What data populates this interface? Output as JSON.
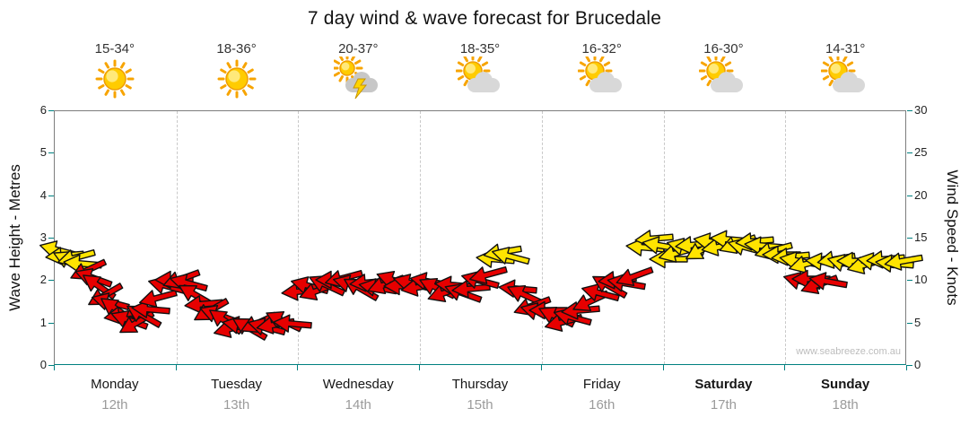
{
  "title": "7 day wind & wave forecast for Brucedale",
  "watermark": "www.seabreeze.com.au",
  "days": [
    {
      "name": "Monday",
      "date": "12th",
      "temp": "15-34°",
      "icon": "sunny",
      "emphasis": false
    },
    {
      "name": "Tuesday",
      "date": "13th",
      "temp": "18-36°",
      "icon": "sunny",
      "emphasis": false
    },
    {
      "name": "Wednesday",
      "date": "14th",
      "temp": "20-37°",
      "icon": "thunderstorm",
      "emphasis": false
    },
    {
      "name": "Thursday",
      "date": "15th",
      "temp": "18-35°",
      "icon": "partly-cloudy",
      "emphasis": false
    },
    {
      "name": "Friday",
      "date": "16th",
      "temp": "16-32°",
      "icon": "partly-cloudy",
      "emphasis": false
    },
    {
      "name": "Saturday",
      "date": "17th",
      "temp": "16-30°",
      "icon": "partly-cloudy",
      "emphasis": true
    },
    {
      "name": "Sunday",
      "date": "18th",
      "temp": "14-31°",
      "icon": "partly-cloudy",
      "emphasis": true
    }
  ],
  "axes": {
    "left_label": "Wave Height - Metres",
    "left_ticks": [
      0,
      1,
      2,
      3,
      4,
      5,
      6
    ],
    "left_max": 6,
    "right_label": "Wind Speed - Knots",
    "right_ticks": [
      0,
      5,
      10,
      15,
      20,
      25,
      30
    ],
    "right_max": 30
  },
  "colors": {
    "arrow_yellow": "#ffe400",
    "arrow_red": "#e60000",
    "arrow_outline": "#111111",
    "axis_tick_teal": "#008080",
    "gridline_gray": "#c9c9c9",
    "date_gray": "#9b9b9b",
    "watermark_gray": "#bdbdbd"
  },
  "chart_data": {
    "type": "scatter",
    "subtype": "wind-direction-arrow-series",
    "title": "7 day wind & wave forecast for Brucedale",
    "x_categories": [
      "Monday 12th",
      "Tuesday 13th",
      "Wednesday 14th",
      "Thursday 15th",
      "Friday 16th",
      "Saturday 17th",
      "Sunday 18th"
    ],
    "ylabel_left": "Wave Height - Metres",
    "ylim_left": [
      0,
      6
    ],
    "ylabel_right": "Wind Speed - Knots",
    "ylim_right": [
      0,
      30
    ],
    "grid": "vertical-day-separators-dashed",
    "legend": "none",
    "point_format": [
      "day_offset_0to7",
      "wind_speed_knots",
      "arrow_rotation_deg_0_points_right",
      "colour_y_yellow_r_red"
    ],
    "points": [
      [
        0.03,
        13.6,
        195,
        "y"
      ],
      [
        0.08,
        13.0,
        175,
        "y"
      ],
      [
        0.13,
        12.4,
        205,
        "y"
      ],
      [
        0.18,
        12.8,
        165,
        "y"
      ],
      [
        0.23,
        12.1,
        185,
        "y"
      ],
      [
        0.27,
        11.3,
        155,
        "r"
      ],
      [
        0.32,
        10.4,
        200,
        "r"
      ],
      [
        0.36,
        9.4,
        215,
        "r"
      ],
      [
        0.41,
        8.4,
        150,
        "r"
      ],
      [
        0.46,
        7.5,
        195,
        "r"
      ],
      [
        0.51,
        6.7,
        215,
        "r"
      ],
      [
        0.56,
        6.0,
        170,
        "r"
      ],
      [
        0.61,
        5.4,
        200,
        "r"
      ],
      [
        0.67,
        5.1,
        150,
        "r"
      ],
      [
        0.73,
        5.9,
        210,
        "r"
      ],
      [
        0.79,
        6.7,
        185,
        "r"
      ],
      [
        0.85,
        8.0,
        165,
        "r"
      ],
      [
        0.92,
        9.4,
        195,
        "r"
      ],
      [
        0.98,
        10.1,
        180,
        "r"
      ],
      [
        1.04,
        10.3,
        160,
        "r"
      ],
      [
        1.1,
        9.7,
        195,
        "r"
      ],
      [
        1.16,
        8.3,
        210,
        "r"
      ],
      [
        1.22,
        7.3,
        175,
        "r"
      ],
      [
        1.28,
        6.6,
        150,
        "r"
      ],
      [
        1.34,
        6.0,
        200,
        "r"
      ],
      [
        1.4,
        5.3,
        215,
        "r"
      ],
      [
        1.46,
        4.4,
        165,
        "r"
      ],
      [
        1.53,
        4.8,
        190,
        "r"
      ],
      [
        1.6,
        4.4,
        210,
        "r"
      ],
      [
        1.67,
        5.1,
        155,
        "r"
      ],
      [
        1.74,
        4.6,
        195,
        "r"
      ],
      [
        1.81,
        4.9,
        170,
        "r"
      ],
      [
        1.88,
        5.3,
        205,
        "r"
      ],
      [
        1.95,
        5.0,
        185,
        "r"
      ],
      [
        2.02,
        8.8,
        175,
        "r"
      ],
      [
        2.09,
        9.4,
        195,
        "r"
      ],
      [
        2.16,
        8.9,
        160,
        "r"
      ],
      [
        2.23,
        9.5,
        205,
        "r"
      ],
      [
        2.3,
        10.1,
        180,
        "r"
      ],
      [
        2.37,
        10.4,
        165,
        "r"
      ],
      [
        2.44,
        9.6,
        195,
        "r"
      ],
      [
        2.51,
        9.1,
        210,
        "r"
      ],
      [
        2.58,
        9.8,
        175,
        "r"
      ],
      [
        2.65,
        9.2,
        190,
        "r"
      ],
      [
        2.72,
        9.6,
        160,
        "r"
      ],
      [
        2.79,
        10.0,
        200,
        "r"
      ],
      [
        2.86,
        9.4,
        180,
        "r"
      ],
      [
        2.93,
        9.7,
        195,
        "r"
      ],
      [
        3.0,
        9.3,
        170,
        "r"
      ],
      [
        3.07,
        9.9,
        190,
        "r"
      ],
      [
        3.14,
        9.2,
        205,
        "r"
      ],
      [
        3.21,
        8.7,
        160,
        "r"
      ],
      [
        3.28,
        9.5,
        185,
        "r"
      ],
      [
        3.35,
        8.6,
        200,
        "r"
      ],
      [
        3.42,
        9.1,
        175,
        "r"
      ],
      [
        3.49,
        10.0,
        195,
        "r"
      ],
      [
        3.56,
        10.8,
        165,
        "r"
      ],
      [
        3.62,
        12.6,
        185,
        "y"
      ],
      [
        3.68,
        13.4,
        170,
        "y"
      ],
      [
        3.74,
        12.9,
        195,
        "y"
      ],
      [
        3.8,
        9.1,
        185,
        "r"
      ],
      [
        3.86,
        8.3,
        205,
        "r"
      ],
      [
        3.92,
        7.1,
        160,
        "r"
      ],
      [
        3.98,
        6.3,
        195,
        "r"
      ],
      [
        4.05,
        6.6,
        180,
        "r"
      ],
      [
        4.12,
        5.8,
        205,
        "r"
      ],
      [
        4.18,
        5.2,
        165,
        "r"
      ],
      [
        4.25,
        5.7,
        195,
        "r"
      ],
      [
        4.32,
        6.6,
        175,
        "r"
      ],
      [
        4.4,
        7.6,
        155,
        "r"
      ],
      [
        4.48,
        8.6,
        195,
        "r"
      ],
      [
        4.55,
        9.4,
        210,
        "r"
      ],
      [
        4.62,
        10.1,
        175,
        "r"
      ],
      [
        4.69,
        9.7,
        190,
        "r"
      ],
      [
        4.76,
        10.6,
        160,
        "r"
      ],
      [
        4.85,
        14.0,
        185,
        "y"
      ],
      [
        4.92,
        15.0,
        175,
        "y"
      ],
      [
        4.98,
        14.2,
        190,
        "y"
      ],
      [
        5.04,
        12.6,
        180,
        "y"
      ],
      [
        5.11,
        13.3,
        165,
        "y"
      ],
      [
        5.18,
        13.9,
        195,
        "y"
      ],
      [
        5.25,
        14.3,
        175,
        "y"
      ],
      [
        5.32,
        13.7,
        150,
        "y"
      ],
      [
        5.4,
        14.6,
        190,
        "y"
      ],
      [
        5.47,
        14.1,
        170,
        "y"
      ],
      [
        5.54,
        14.9,
        185,
        "y"
      ],
      [
        5.61,
        14.4,
        160,
        "y"
      ],
      [
        5.68,
        13.9,
        195,
        "y"
      ],
      [
        5.75,
        14.7,
        175,
        "y"
      ],
      [
        5.82,
        14.2,
        185,
        "y"
      ],
      [
        5.9,
        13.6,
        165,
        "y"
      ],
      [
        5.97,
        13.1,
        180,
        "y"
      ],
      [
        6.04,
        12.9,
        175,
        "y"
      ],
      [
        6.11,
        12.4,
        190,
        "y"
      ],
      [
        6.18,
        12.1,
        165,
        "y"
      ],
      [
        6.14,
        9.9,
        195,
        "r"
      ],
      [
        6.21,
        10.2,
        180,
        "r"
      ],
      [
        6.28,
        9.6,
        160,
        "r"
      ],
      [
        6.35,
        9.9,
        190,
        "r"
      ],
      [
        6.32,
        12.3,
        185,
        "y"
      ],
      [
        6.42,
        12.6,
        170,
        "y"
      ],
      [
        6.5,
        12.1,
        195,
        "y"
      ],
      [
        6.58,
        12.4,
        180,
        "y"
      ],
      [
        6.66,
        11.9,
        165,
        "y"
      ],
      [
        6.74,
        12.3,
        190,
        "y"
      ],
      [
        6.82,
        12.6,
        175,
        "y"
      ],
      [
        6.9,
        12.1,
        185,
        "y"
      ],
      [
        6.97,
        12.4,
        170,
        "y"
      ]
    ]
  }
}
